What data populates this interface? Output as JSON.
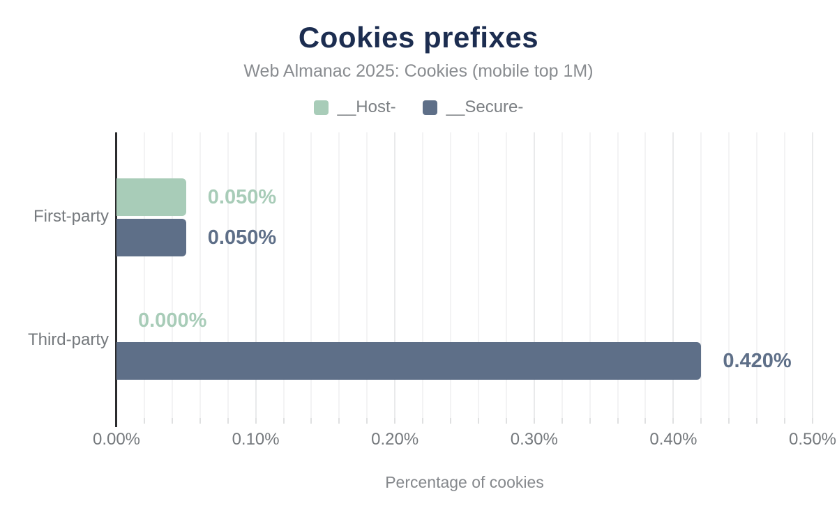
{
  "header": {
    "title": "Cookies prefixes",
    "subtitle": "Web Almanac 2025: Cookies (mobile top 1M)"
  },
  "colors": {
    "title": "#1c2d50",
    "subtitle_gray": "#898c90",
    "axis_label_gray": "#75797d",
    "legend_text_gray": "#7b7f83",
    "series_host_green": "#a8ccb8",
    "series_secure_blue": "#5e6f88",
    "axis_line": "#2b2c2e",
    "gridline_minor": "#f3f3f4",
    "gridline_major": "#e9eaeb"
  },
  "chart_data": {
    "type": "bar",
    "orientation": "horizontal",
    "title": "Cookies prefixes",
    "subtitle": "Web Almanac 2025: Cookies (mobile top 1M)",
    "categories": [
      "First-party",
      "Third-party"
    ],
    "series": [
      {
        "name": "__Host-",
        "color": "#a8ccb8",
        "values": [
          0.05,
          0.0
        ],
        "labels": [
          "0.050%",
          "0.000%"
        ]
      },
      {
        "name": "__Secure-",
        "color": "#5e6f88",
        "values": [
          0.05,
          0.42
        ],
        "labels": [
          "0.050%",
          "0.420%"
        ]
      }
    ],
    "xlabel": "Percentage of cookies",
    "ylabel": "",
    "xlim": [
      0,
      0.5
    ],
    "x_ticks": [
      {
        "value": 0.0,
        "label": "0.00%"
      },
      {
        "value": 0.1,
        "label": "0.10%"
      },
      {
        "value": 0.2,
        "label": "0.20%"
      },
      {
        "value": 0.3,
        "label": "0.30%"
      },
      {
        "value": 0.4,
        "label": "0.40%"
      },
      {
        "value": 0.5,
        "label": "0.50%"
      }
    ],
    "grid": {
      "axis": "x",
      "minor_step": 0.02,
      "major_step": 0.1
    },
    "legend_position": "top",
    "value_labels_shown": true
  }
}
